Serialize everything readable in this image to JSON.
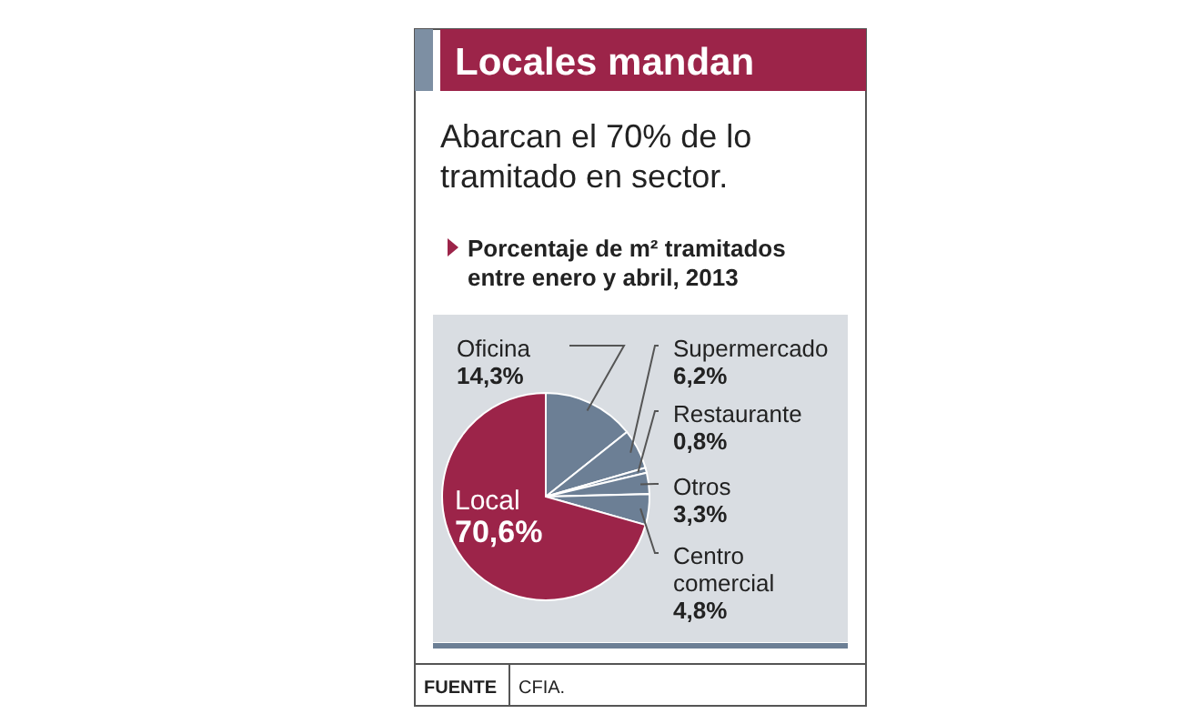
{
  "chart_data": {
    "type": "pie",
    "title": "Locales mandan",
    "subtitle": "Abarcan el 70% de lo tramitado en sector.",
    "categories": [
      "Oficina",
      "Supermercado",
      "Restaurante",
      "Otros",
      "Centro comercial",
      "Local"
    ],
    "values": [
      14.3,
      6.2,
      0.8,
      3.3,
      4.8,
      70.6
    ],
    "value_labels": [
      "14,3%",
      "6,2%",
      "0,8%",
      "3,3%",
      "4,8%",
      "70,6%"
    ],
    "colors": [
      "#6c7f95",
      "#6c7f95",
      "#6c7f95",
      "#6c7f95",
      "#6c7f95",
      "#9c2449"
    ],
    "annotations": [
      "Porcentaje de m² tramitados entre enero y abril, 2013",
      "FUENTE",
      "CFIA."
    ]
  }
}
